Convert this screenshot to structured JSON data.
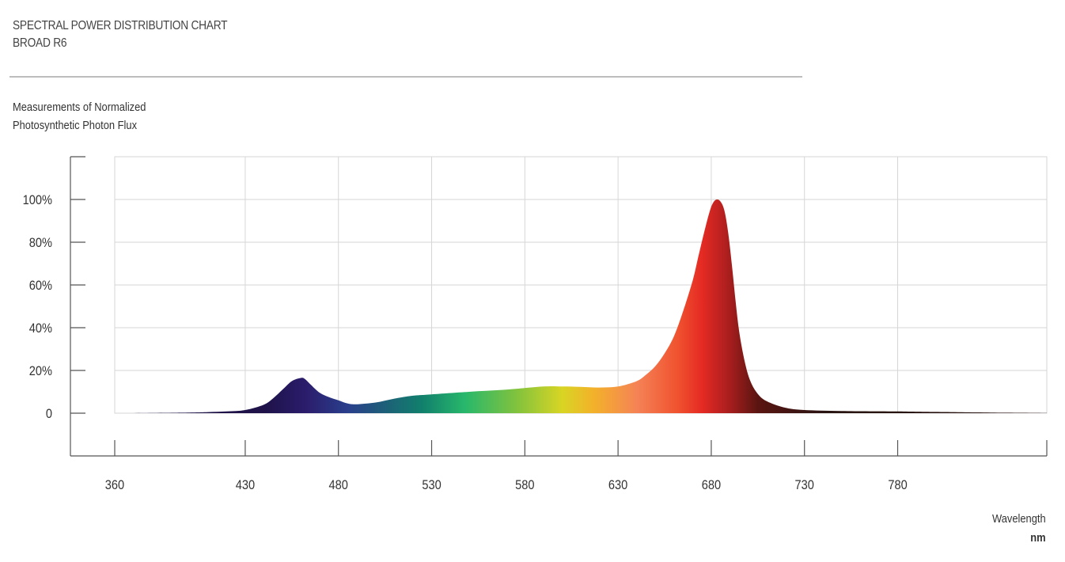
{
  "header": {
    "title": "SPECTRAL POWER DISTRIBUTION CHART",
    "subtitle": "BROAD R6"
  },
  "chart_data": {
    "type": "area",
    "title": "Measurements of Normalized",
    "title_line2": "Photosynthetic Photon Flux",
    "xlabel": "Wavelength",
    "xunit": "nm",
    "ylabel": "",
    "xlim": [
      360,
      860
    ],
    "ylim": [
      -20,
      120
    ],
    "x_ticks": [
      360,
      430,
      480,
      530,
      580,
      630,
      680,
      730,
      780
    ],
    "y_ticks": [
      0,
      20,
      40,
      60,
      80,
      100
    ],
    "y_tick_labels": [
      "0",
      "20%",
      "40%",
      "60%",
      "80%",
      "100%"
    ],
    "grid": true,
    "series": [
      {
        "x": [
          360,
          380,
          400,
          410,
          420,
          430,
          440,
          445,
          450,
          455,
          460,
          462,
          465,
          470,
          475,
          480,
          485,
          490,
          500,
          510,
          520,
          530,
          550,
          570,
          590,
          600,
          610,
          620,
          630,
          640,
          645,
          650,
          655,
          660,
          665,
          670,
          673,
          676,
          679,
          681,
          683,
          685,
          687,
          689,
          691,
          693,
          695,
          698,
          701,
          705,
          710,
          720,
          730,
          750,
          780,
          800,
          830,
          860
        ],
        "y": [
          0,
          0.1,
          0.3,
          0.5,
          0.8,
          1.5,
          4,
          7,
          11,
          15,
          16.5,
          16,
          13.5,
          9.5,
          7.5,
          6,
          4.5,
          4.2,
          5,
          6.8,
          8.2,
          8.8,
          10,
          11,
          12.5,
          12.5,
          12.3,
          12,
          12.5,
          15,
          18,
          22,
          28,
          36,
          48,
          62,
          73,
          84,
          94,
          98.5,
          100,
          99,
          95,
          85,
          70,
          53,
          38,
          24,
          15,
          9,
          5.5,
          2.5,
          1.5,
          1.0,
          0.8,
          0.6,
          0.3,
          0.1
        ]
      }
    ],
    "gradient_stops": [
      {
        "wl": 440,
        "color": "#1e1248"
      },
      {
        "wl": 462,
        "color": "#2b1c6b"
      },
      {
        "wl": 485,
        "color": "#2a3f8c"
      },
      {
        "wl": 505,
        "color": "#1d5f78"
      },
      {
        "wl": 525,
        "color": "#11806c"
      },
      {
        "wl": 548,
        "color": "#28b86b"
      },
      {
        "wl": 575,
        "color": "#7fc23e"
      },
      {
        "wl": 600,
        "color": "#d8d524"
      },
      {
        "wl": 617,
        "color": "#f3b12a"
      },
      {
        "wl": 640,
        "color": "#f58356"
      },
      {
        "wl": 662,
        "color": "#f0522f"
      },
      {
        "wl": 675,
        "color": "#e52a23"
      },
      {
        "wl": 688,
        "color": "#b01f1f"
      },
      {
        "wl": 705,
        "color": "#5a1511"
      },
      {
        "wl": 740,
        "color": "#2a1412"
      }
    ]
  }
}
